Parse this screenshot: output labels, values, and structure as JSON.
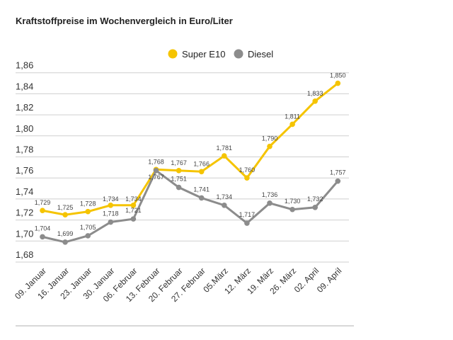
{
  "chart_data": {
    "type": "line",
    "title": "Kraftstoffpreise im Wochenvergleich in Euro/Liter",
    "categories": [
      "09. Januar",
      "16. Januar",
      "23. Januar",
      "30. Januar",
      "06. Februar",
      "13. Februar",
      "20. Februar",
      "27. Februar",
      "05.März",
      "12. März",
      "19. März",
      "26. März",
      "02. April",
      "09. April"
    ],
    "series": [
      {
        "name": "Super E10",
        "color": "#f5c400",
        "values": [
          1.729,
          1.725,
          1.728,
          1.734,
          1.734,
          1.768,
          1.767,
          1.766,
          1.781,
          1.76,
          1.79,
          1.811,
          1.833,
          1.85
        ],
        "labels": [
          "1,729",
          "1,725",
          "1,728",
          "1,734",
          "1,734",
          "1,768",
          "1,767",
          "1,766",
          "1,781",
          "1,760",
          "1,790",
          "1,811",
          "1,833",
          "1,850"
        ]
      },
      {
        "name": "Diesel",
        "color": "#8c8c8c",
        "values": [
          1.704,
          1.699,
          1.705,
          1.718,
          1.721,
          1.767,
          1.751,
          1.741,
          1.734,
          1.717,
          1.736,
          1.73,
          1.732,
          1.757
        ],
        "labels": [
          "1,704",
          "1,699",
          "1,705",
          "1,718",
          "1,721",
          "1,767",
          "1,751",
          "1,741",
          "1,734",
          "1,717",
          "1,736",
          "1,730",
          "1,732",
          "1,757"
        ]
      }
    ],
    "yticks": [
      "1,68",
      "1,70",
      "1,72",
      "1,74",
      "1,76",
      "1,78",
      "1,80",
      "1,82",
      "1,84",
      "1,86"
    ],
    "ylim": [
      1.68,
      1.86
    ],
    "grid": true,
    "legend": "top-center"
  }
}
